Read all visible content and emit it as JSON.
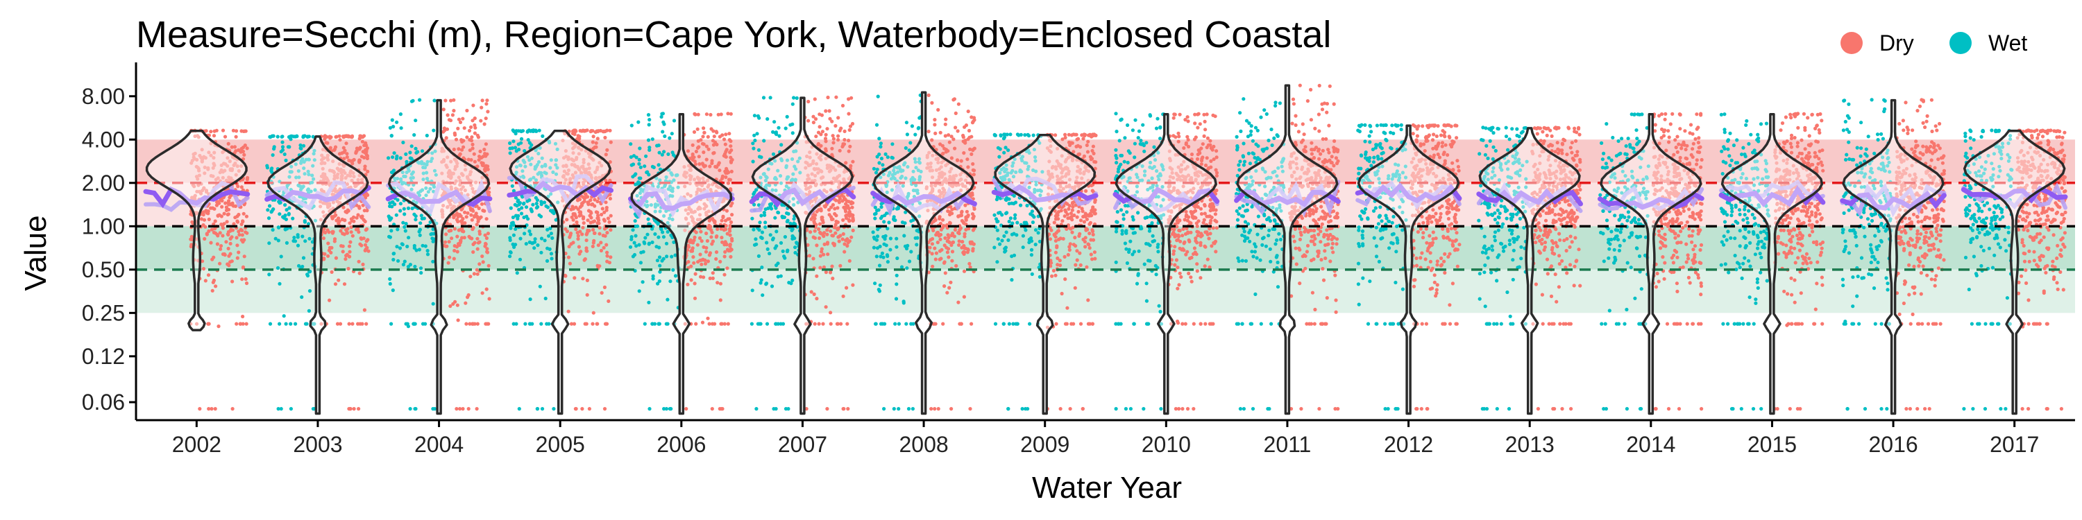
{
  "chart_data": {
    "type": "violin",
    "title": "Measure=Secchi (m), Region=Cape York, Waterbody=Enclosed Coastal",
    "xlabel": "Water Year",
    "ylabel": "Value",
    "x_categories": [
      "2002",
      "2003",
      "2004",
      "2005",
      "2006",
      "2007",
      "2008",
      "2009",
      "2010",
      "2011",
      "2012",
      "2013",
      "2014",
      "2015",
      "2016",
      "2017"
    ],
    "y_scale": "log2",
    "y_ticks": [
      {
        "value": 0.06,
        "label": "0.06"
      },
      {
        "value": 0.125,
        "label": "0.12"
      },
      {
        "value": 0.25,
        "label": "0.25"
      },
      {
        "value": 0.5,
        "label": "0.50"
      },
      {
        "value": 1,
        "label": "1.00"
      },
      {
        "value": 2,
        "label": "2.00"
      },
      {
        "value": 4,
        "label": "4.00"
      },
      {
        "value": 8,
        "label": "8.00"
      }
    ],
    "ylim": [
      0.045,
      13
    ],
    "reference_lines": [
      {
        "value": 2,
        "color": "#e41a1c",
        "style": "dashed"
      },
      {
        "value": 1,
        "color": "#000000",
        "style": "dashed"
      },
      {
        "value": 0.5,
        "color": "#1b7a4e",
        "style": "dashed"
      }
    ],
    "bands": [
      {
        "from": 2,
        "to": 4,
        "color": "#f8c9c9"
      },
      {
        "from": 1,
        "to": 2,
        "color": "#fbe2e2"
      },
      {
        "from": 0.5,
        "to": 1,
        "color": "#bfe3d2"
      },
      {
        "from": 0.25,
        "to": 0.5,
        "color": "#dff1e8"
      }
    ],
    "legend": {
      "position": "top-right",
      "entries": [
        {
          "label": "Dry",
          "color": "#f8766d"
        },
        {
          "label": "Wet",
          "color": "#00bfc4"
        }
      ]
    },
    "series": [
      {
        "name": "Dry",
        "color": "#f8766d"
      },
      {
        "name": "Wet",
        "color": "#00bfc4"
      }
    ],
    "trend_colors": {
      "smooth": "#8f5bf2",
      "smooth_light": "#b7a3f5"
    },
    "years": [
      {
        "year": "2002",
        "median": 1.6,
        "mode": 2.5,
        "max": 4.6,
        "min": 0.19,
        "has_dry": true,
        "has_wet": false
      },
      {
        "year": "2003",
        "median": 1.7,
        "mode": 2.0,
        "max": 4.2,
        "min": 0.05,
        "has_dry": true,
        "has_wet": true
      },
      {
        "year": "2004",
        "median": 1.6,
        "mode": 2.0,
        "max": 7.5,
        "min": 0.05,
        "has_dry": true,
        "has_wet": true
      },
      {
        "year": "2005",
        "median": 1.8,
        "mode": 2.5,
        "max": 4.6,
        "min": 0.05,
        "has_dry": true,
        "has_wet": true
      },
      {
        "year": "2006",
        "median": 1.5,
        "mode": 1.6,
        "max": 6.0,
        "min": 0.05,
        "has_dry": true,
        "has_wet": true
      },
      {
        "year": "2007",
        "median": 1.6,
        "mode": 2.2,
        "max": 7.8,
        "min": 0.05,
        "has_dry": true,
        "has_wet": true
      },
      {
        "year": "2008",
        "median": 1.6,
        "mode": 2.0,
        "max": 8.5,
        "min": 0.05,
        "has_dry": true,
        "has_wet": true
      },
      {
        "year": "2009",
        "median": 1.7,
        "mode": 2.3,
        "max": 4.3,
        "min": 0.05,
        "has_dry": true,
        "has_wet": true
      },
      {
        "year": "2010",
        "median": 1.6,
        "mode": 2.0,
        "max": 6.0,
        "min": 0.05,
        "has_dry": true,
        "has_wet": true
      },
      {
        "year": "2011",
        "median": 1.6,
        "mode": 2.0,
        "max": 9.5,
        "min": 0.05,
        "has_dry": true,
        "has_wet": true
      },
      {
        "year": "2012",
        "median": 1.7,
        "mode": 2.0,
        "max": 5.0,
        "min": 0.05,
        "has_dry": true,
        "has_wet": true
      },
      {
        "year": "2013",
        "median": 1.6,
        "mode": 2.2,
        "max": 4.8,
        "min": 0.05,
        "has_dry": true,
        "has_wet": true
      },
      {
        "year": "2014",
        "median": 1.5,
        "mode": 2.0,
        "max": 6.0,
        "min": 0.05,
        "has_dry": true,
        "has_wet": true
      },
      {
        "year": "2015",
        "median": 1.6,
        "mode": 2.0,
        "max": 6.0,
        "min": 0.05,
        "has_dry": true,
        "has_wet": true
      },
      {
        "year": "2016",
        "median": 1.5,
        "mode": 2.0,
        "max": 7.5,
        "min": 0.05,
        "has_dry": true,
        "has_wet": true
      },
      {
        "year": "2017",
        "median": 1.7,
        "mode": 2.5,
        "max": 4.6,
        "min": 0.05,
        "has_dry": true,
        "has_wet": true
      }
    ]
  }
}
